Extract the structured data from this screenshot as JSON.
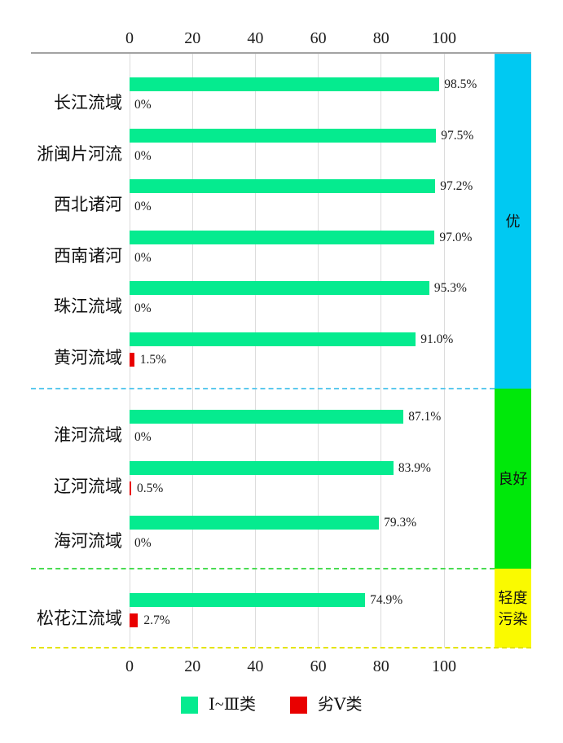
{
  "background": "#FFFFFF",
  "chart_data": {
    "type": "bar",
    "orientation": "horizontal",
    "title": "",
    "xlabel": "",
    "ylabel": "",
    "xlim": [
      0,
      100
    ],
    "ticks": [
      0,
      20,
      40,
      60,
      80,
      100
    ],
    "tick_labels": [
      "0",
      "20",
      "40",
      "60",
      "80",
      "100"
    ],
    "axis_positions": [
      "top",
      "bottom"
    ],
    "grid": true,
    "legend_position": "bottom",
    "categories": [
      "长江流域",
      "浙闽片河流",
      "西北诸河",
      "西南诸河",
      "珠江流域",
      "黄河流域",
      "淮河流域",
      "辽河流域",
      "海河流域",
      "松花江流域"
    ],
    "series": [
      {
        "name": "Ⅰ~Ⅲ类",
        "color": "#05EB8F",
        "values": [
          98.5,
          97.5,
          97.2,
          97.0,
          95.3,
          91.0,
          87.1,
          83.9,
          79.3,
          74.9
        ],
        "labels": [
          "98.5%",
          "97.5%",
          "97.2%",
          "97.0%",
          "95.3%",
          "91.0%",
          "87.1%",
          "83.9%",
          "79.3%",
          "74.9%"
        ]
      },
      {
        "name": "劣Ⅴ类",
        "color": "#E90000",
        "values": [
          0,
          0,
          0,
          0,
          0,
          1.5,
          0,
          0.5,
          0,
          2.7
        ],
        "labels": [
          "0%",
          "0%",
          "0%",
          "0%",
          "0%",
          "1.5%",
          "0%",
          "0.5%",
          "0%",
          "2.7%"
        ]
      }
    ],
    "sections": [
      {
        "label": "优",
        "label_lines": [
          "优"
        ],
        "rows": 6,
        "band_color": "#00C9F2",
        "separator_color": "#5CC9EE"
      },
      {
        "label": "良好",
        "label_lines": [
          "良好"
        ],
        "rows": 3,
        "band_color": "#00E80A",
        "separator_color": "#49DC52"
      },
      {
        "label": "轻度污染",
        "label_lines": [
          "轻度",
          "污染"
        ],
        "rows": 1,
        "band_color": "#FAFA00",
        "separator_color": "#E4E400"
      }
    ]
  }
}
